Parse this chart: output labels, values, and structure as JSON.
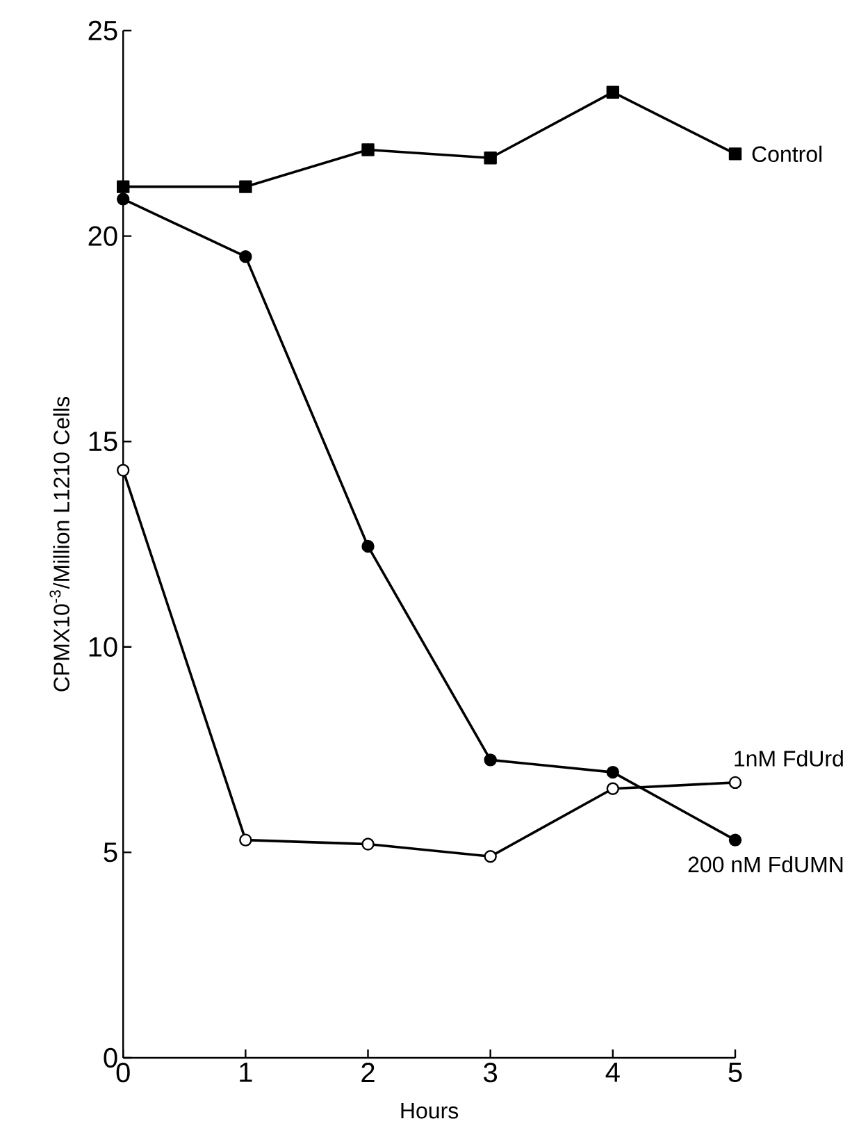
{
  "chart_data": {
    "type": "line",
    "xlabel": "Hours",
    "ylabel": "CPMX10$^{-3}$/Million L1210 Cells",
    "x": [
      0,
      1,
      2,
      3,
      4,
      5
    ],
    "xlim": [
      0,
      5
    ],
    "xticks": [
      0,
      1,
      2,
      3,
      4,
      5
    ],
    "ylim": [
      0,
      25
    ],
    "yticks": [
      0,
      5,
      10,
      15,
      20,
      25
    ],
    "grid": false,
    "line_style": "solid",
    "series": [
      {
        "name": "Control",
        "color": "#000000",
        "marker": "square",
        "values": [
          21.2,
          21.2,
          22.1,
          21.9,
          23.5,
          22.0
        ]
      },
      {
        "name": "200 nM FdUMN",
        "color": "#000000",
        "marker": "circle",
        "values": [
          20.9,
          19.5,
          12.45,
          7.25,
          6.95,
          5.3
        ]
      },
      {
        "name": "1nM FdUrd",
        "color": "#000000",
        "marker": "circle",
        "values": [
          14.3,
          5.3,
          5.2,
          4.9,
          6.55,
          6.7
        ]
      }
    ]
  }
}
